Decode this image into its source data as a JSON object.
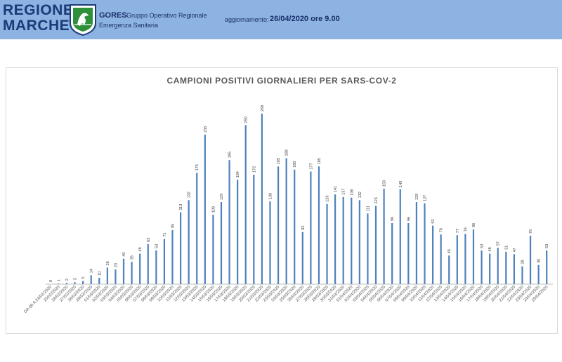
{
  "header": {
    "logo_line1": "REGIONE",
    "logo_line2": "MARCHE",
    "org_name": "GORES",
    "org_sub1": "Gruppo Operativo Regionale",
    "org_sub2": "Emergenza Sanitaria",
    "update_label": "aggiornamento:",
    "update_value": "26/04/2020 ore 9.00",
    "crest_icon": "marche-crest-icon",
    "bg_color": "#8db3e2",
    "text_color": "#1a2f6a"
  },
  "chart_data": {
    "type": "bar",
    "title": "CAMPIONI POSITIVI GIORNALIERI PER SARS-COV-2",
    "xlabel": "",
    "ylabel": "",
    "ylim": [
      0,
      268
    ],
    "bar_color": "#4e81bd",
    "grid": false,
    "legend": "none",
    "categories": [
      "DA 06 A 24/02/2020",
      "25/02/2020",
      "26/02/2020",
      "27/02/2020",
      "28/02/2020",
      "29/02/2020",
      "01/03/2020",
      "02/03/2020",
      "03/03/2020",
      "04/03/2020",
      "05/03/2020",
      "06/03/2020",
      "07/03/2020",
      "08/03/2020",
      "09/03/2020",
      "10/03/2020",
      "11/03/2020",
      "12/03/2020",
      "13/03/2020",
      "14/03/2020",
      "15/03/2020",
      "16/03/2020",
      "17/03/2020",
      "18/03/2020",
      "19/03/2020",
      "20/03/2020",
      "21/03/2020",
      "22/03/2020",
      "23/03/2020",
      "24/03/2020",
      "25/03/2020",
      "26/03/2020",
      "27/03/2020",
      "28/03/2020",
      "29/03/2020",
      "30/03/2020",
      "31/03/2020",
      "01/04/2020",
      "02/04/2020",
      "03/04/2020",
      "04/04/2020",
      "05/04/2020",
      "06/04/2020",
      "07/04/2020",
      "08/04/2020",
      "09/04/2020",
      "10/04/2020",
      "11/04/2020",
      "12/04/2020",
      "13/04/2020",
      "14/04/2020",
      "15/04/2020",
      "16/04/2020",
      "17/04/2020",
      "18/04/2020",
      "19/04/2020",
      "20/04/2020",
      "21/04/2020",
      "22/04/2020",
      "23/04/2020",
      "24/04/2020",
      "25/04/2020"
    ],
    "values": [
      0,
      1,
      2,
      3,
      5,
      14,
      10,
      26,
      23,
      40,
      35,
      48,
      63,
      53,
      71,
      85,
      113,
      132,
      175,
      235,
      109,
      129,
      195,
      164,
      250,
      172,
      268,
      130,
      185,
      198,
      180,
      82,
      177,
      185,
      126,
      141,
      137,
      136,
      132,
      111,
      123,
      150,
      96,
      149,
      96,
      129,
      127,
      92,
      78,
      45,
      77,
      79,
      86,
      53,
      48,
      57,
      51,
      47,
      28,
      76,
      30,
      53
    ]
  }
}
